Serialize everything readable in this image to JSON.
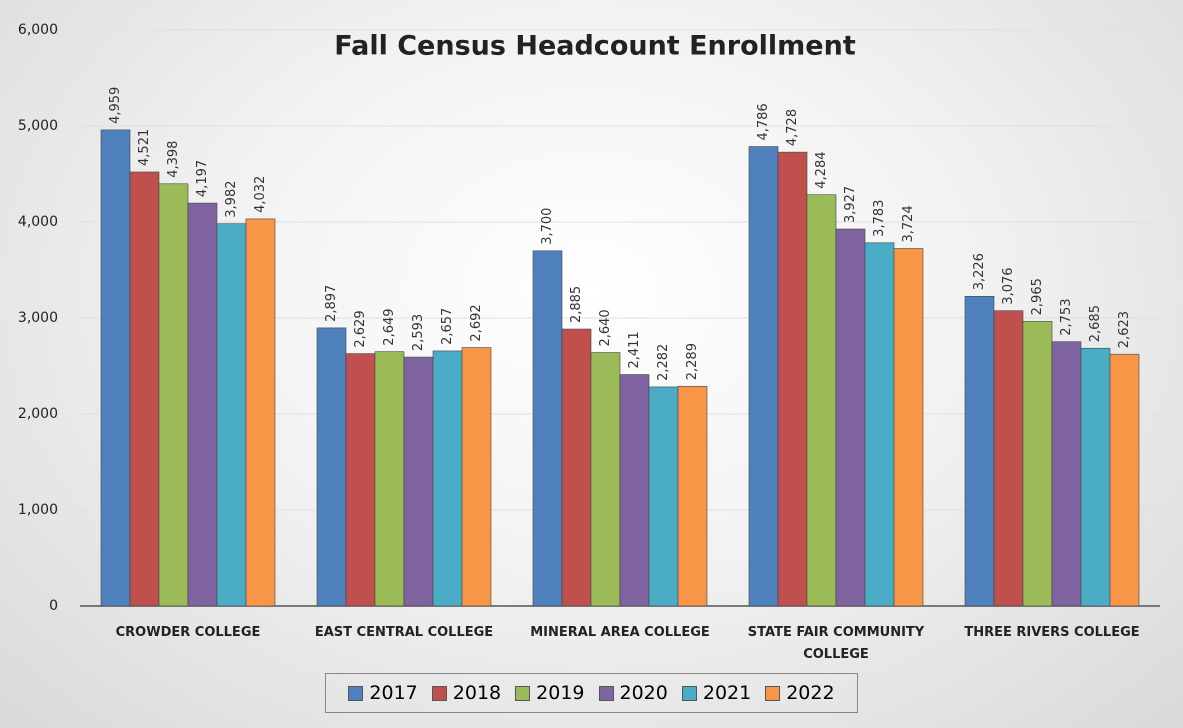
{
  "chart_data": {
    "type": "bar",
    "title": "Fall Census Headcount Enrollment",
    "categories": [
      "CROWDER COLLEGE",
      "EAST CENTRAL COLLEGE",
      "MINERAL AREA COLLEGE",
      "STATE FAIR COMMUNITY COLLEGE",
      "THREE RIVERS COLLEGE"
    ],
    "series": [
      {
        "name": "2017",
        "color": "#4f81bd",
        "values": [
          4959,
          2897,
          3700,
          4786,
          3226
        ],
        "value_labels": [
          "4,959",
          "2,897",
          "3,700",
          "4,786",
          "3,226"
        ]
      },
      {
        "name": "2018",
        "color": "#c0504d",
        "values": [
          4521,
          2629,
          2885,
          4728,
          3076
        ],
        "value_labels": [
          "4,521",
          "2,629",
          "2,885",
          "4,728",
          "3,076"
        ]
      },
      {
        "name": "2019",
        "color": "#9bbb59",
        "values": [
          4398,
          2649,
          2640,
          4284,
          2965
        ],
        "value_labels": [
          "4,398",
          "2,649",
          "2,640",
          "4,284",
          "2,965"
        ]
      },
      {
        "name": "2020",
        "color": "#8064a2",
        "values": [
          4197,
          2593,
          2411,
          3927,
          2753
        ],
        "value_labels": [
          "4,197",
          "2,593",
          "2,411",
          "3,927",
          "2,753"
        ]
      },
      {
        "name": "2021",
        "color": "#4bacc6",
        "values": [
          3982,
          2657,
          2282,
          3783,
          2685
        ],
        "value_labels": [
          "3,982",
          "2,657",
          "2,282",
          "3,783",
          "2,685"
        ]
      },
      {
        "name": "2022",
        "color": "#f79646",
        "values": [
          4032,
          2692,
          2289,
          3724,
          2623
        ],
        "value_labels": [
          "4,032",
          "2,692",
          "2,289",
          "3,724",
          "2,623"
        ]
      }
    ],
    "ylim": [
      0,
      6000
    ],
    "yticks": [
      0,
      {
        "value": 1000,
        "label": "1,000"
      },
      {
        "value": 2000,
        "label": "2,000"
      },
      {
        "value": 3000,
        "label": "3,000"
      },
      {
        "value": 4000,
        "label": "4,000"
      },
      {
        "value": 5000,
        "label": "5,000"
      },
      {
        "value": 6000,
        "label": "6,000"
      }
    ],
    "grid": true
  }
}
